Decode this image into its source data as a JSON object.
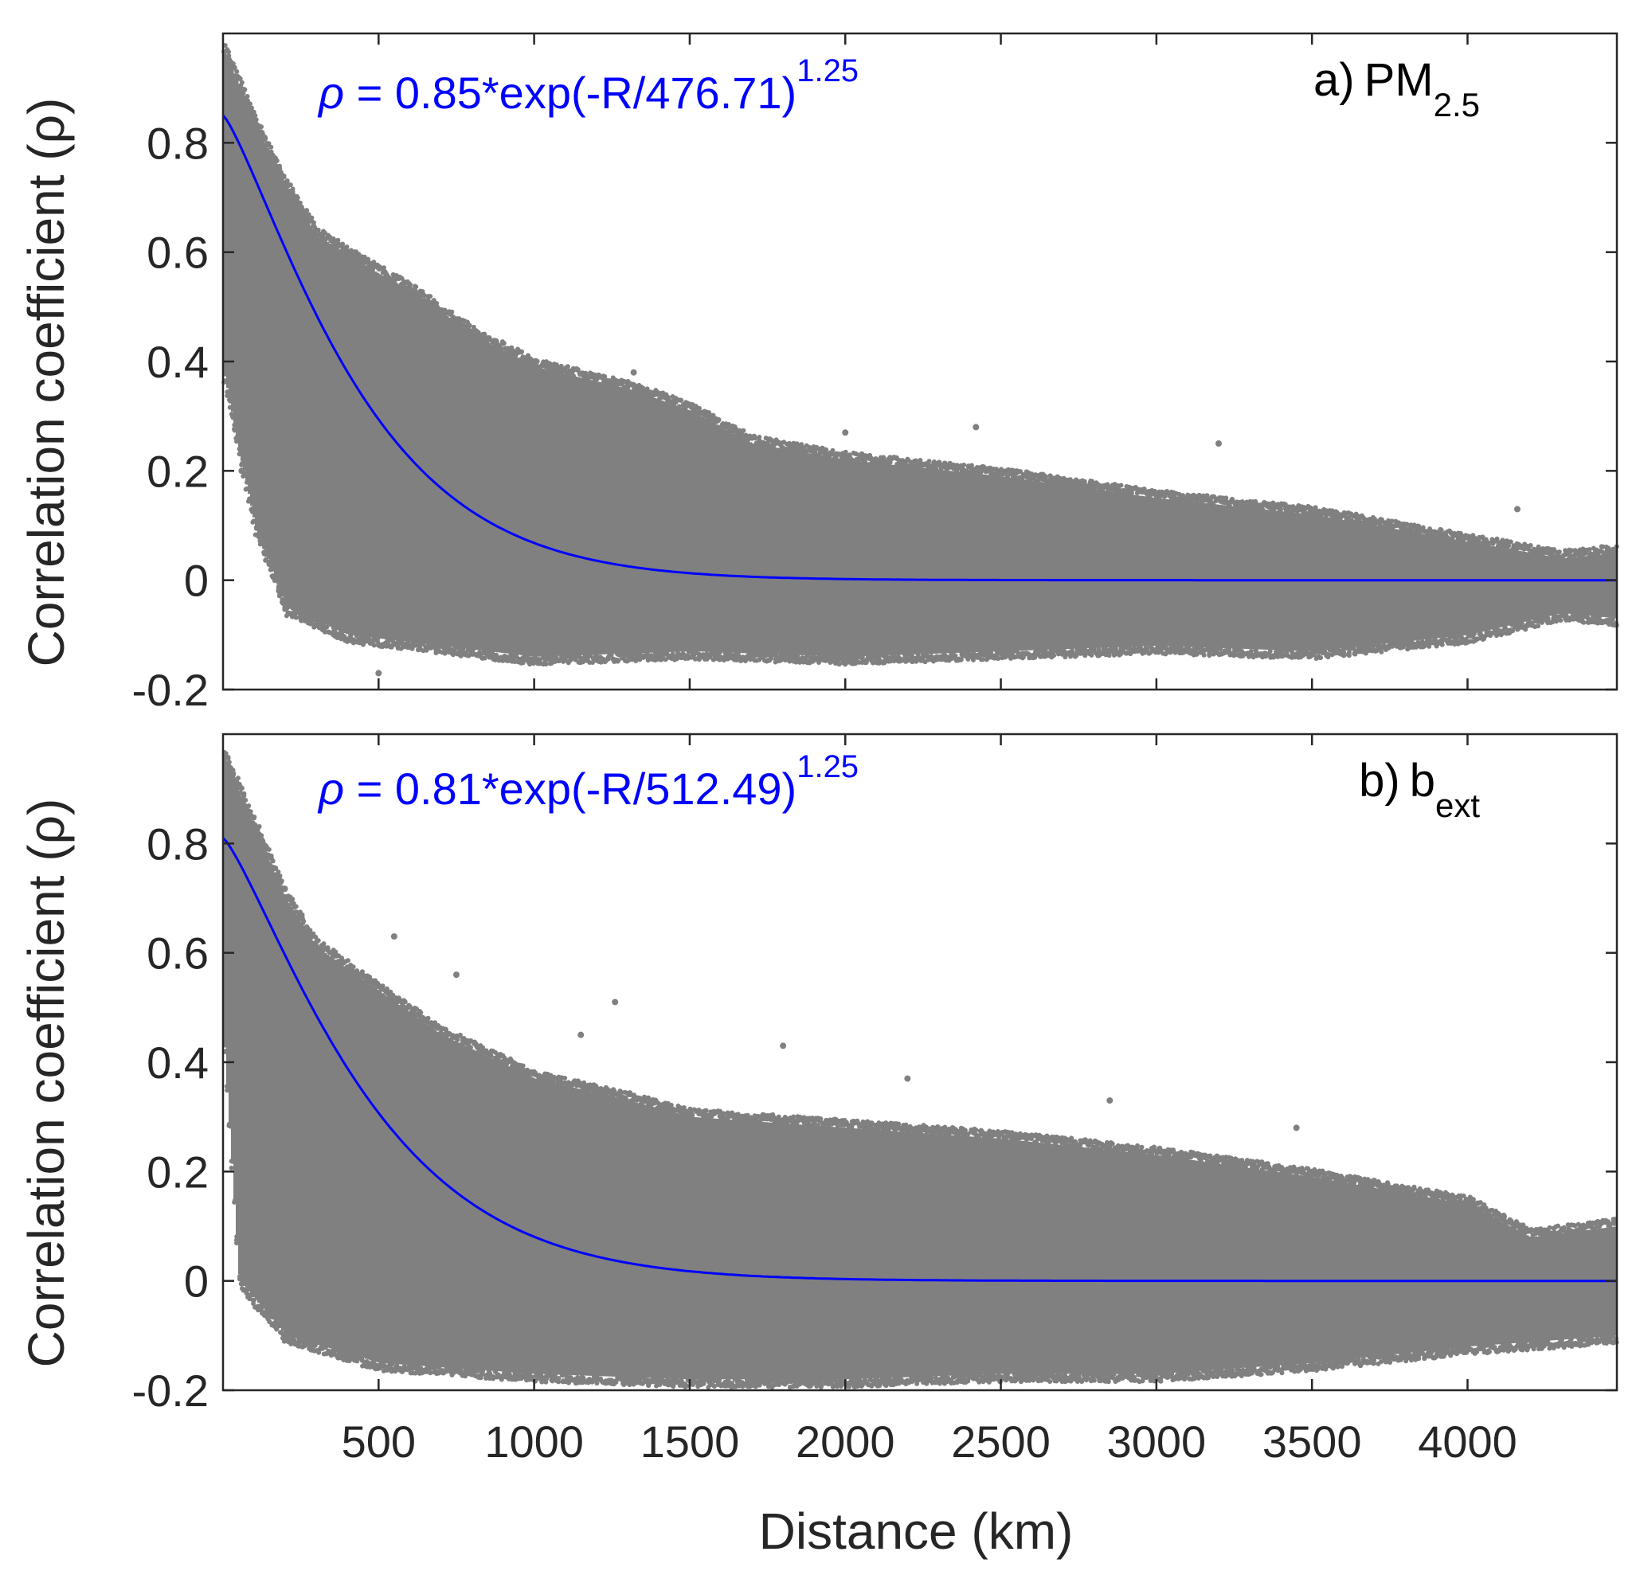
{
  "chart_data": [
    {
      "type": "scatter",
      "panel_label": "a)",
      "panel_var": "PM",
      "panel_var_sub": "2.5",
      "equation": {
        "symbol": "ρ",
        "body": " = 0.85*exp(-R/476.71)",
        "exponent": "1.25",
        "a": 0.85,
        "L": 476.71,
        "p": 1.25
      },
      "ylabel": "Correlation coefficient (ρ)",
      "xlim": [
        0,
        4480
      ],
      "ylim": [
        -0.2,
        1.0
      ],
      "yticks": [
        -0.2,
        0,
        0.2,
        0.4,
        0.6,
        0.8
      ],
      "ytick_labels": [
        "-0.2",
        "0",
        "0.2",
        "0.4",
        "0.6",
        "0.8"
      ],
      "xticks": [
        500,
        1000,
        1500,
        2000,
        2500,
        3000,
        3500,
        4000
      ],
      "show_xtick_labels": false,
      "scatter_color": "#808080",
      "fit_color": "#0000ff",
      "upper_envelope": [
        [
          0,
          0.97
        ],
        [
          100,
          0.84
        ],
        [
          200,
          0.72
        ],
        [
          300,
          0.63
        ],
        [
          500,
          0.56
        ],
        [
          600,
          0.53
        ],
        [
          800,
          0.45
        ],
        [
          1000,
          0.39
        ],
        [
          1300,
          0.35
        ],
        [
          1500,
          0.31
        ],
        [
          1700,
          0.25
        ],
        [
          2000,
          0.22
        ],
        [
          2500,
          0.19
        ],
        [
          3000,
          0.15
        ],
        [
          3500,
          0.12
        ],
        [
          4000,
          0.07
        ],
        [
          4300,
          0.04
        ],
        [
          4480,
          0.05
        ]
      ],
      "lower_envelope": [
        [
          0,
          0.38
        ],
        [
          100,
          0.1
        ],
        [
          200,
          -0.05
        ],
        [
          400,
          -0.1
        ],
        [
          700,
          -0.12
        ],
        [
          1000,
          -0.14
        ],
        [
          1500,
          -0.13
        ],
        [
          2000,
          -0.14
        ],
        [
          2500,
          -0.13
        ],
        [
          3000,
          -0.12
        ],
        [
          3500,
          -0.13
        ],
        [
          4000,
          -0.1
        ],
        [
          4300,
          -0.06
        ],
        [
          4480,
          -0.07
        ]
      ],
      "outliers": [
        [
          1320,
          0.38
        ],
        [
          2000,
          0.27
        ],
        [
          2420,
          0.28
        ],
        [
          3200,
          0.25
        ],
        [
          4160,
          0.13
        ],
        [
          1000,
          0.4
        ],
        [
          60,
          0.2
        ],
        [
          500,
          -0.17
        ]
      ]
    },
    {
      "type": "scatter",
      "panel_label": "b)",
      "panel_var": "b",
      "panel_var_sub": "ext",
      "equation": {
        "symbol": "ρ",
        "body": " = 0.81*exp(-R/512.49)",
        "exponent": "1.25",
        "a": 0.81,
        "L": 512.49,
        "p": 1.25
      },
      "ylabel": "Correlation coefficient (ρ)",
      "xlabel": "Distance (km)",
      "xlim": [
        0,
        4480
      ],
      "ylim": [
        -0.2,
        1.0
      ],
      "yticks": [
        -0.2,
        0,
        0.2,
        0.4,
        0.6,
        0.8
      ],
      "ytick_labels": [
        "-0.2",
        "0",
        "0.2",
        "0.4",
        "0.6",
        "0.8"
      ],
      "xticks": [
        500,
        1000,
        1500,
        2000,
        2500,
        3000,
        3500,
        4000
      ],
      "xtick_labels": [
        "500",
        "1000",
        "1500",
        "2000",
        "2500",
        "3000",
        "3500",
        "4000"
      ],
      "show_xtick_labels": true,
      "scatter_color": "#808080",
      "fit_color": "#0000ff",
      "upper_envelope": [
        [
          0,
          0.96
        ],
        [
          100,
          0.83
        ],
        [
          200,
          0.7
        ],
        [
          300,
          0.61
        ],
        [
          500,
          0.53
        ],
        [
          700,
          0.45
        ],
        [
          1000,
          0.37
        ],
        [
          1300,
          0.33
        ],
        [
          1500,
          0.3
        ],
        [
          2000,
          0.28
        ],
        [
          2500,
          0.26
        ],
        [
          3000,
          0.23
        ],
        [
          3500,
          0.19
        ],
        [
          4000,
          0.14
        ],
        [
          4200,
          0.08
        ],
        [
          4480,
          0.1
        ]
      ],
      "lower_envelope": [
        [
          0,
          0.45
        ],
        [
          50,
          0.0
        ],
        [
          200,
          -0.1
        ],
        [
          500,
          -0.15
        ],
        [
          1000,
          -0.17
        ],
        [
          1500,
          -0.18
        ],
        [
          2000,
          -0.18
        ],
        [
          2500,
          -0.17
        ],
        [
          3000,
          -0.17
        ],
        [
          3500,
          -0.15
        ],
        [
          4000,
          -0.12
        ],
        [
          4480,
          -0.1
        ]
      ],
      "outliers": [
        [
          1260,
          0.51
        ],
        [
          750,
          0.56
        ],
        [
          1800,
          0.43
        ],
        [
          1150,
          0.45
        ],
        [
          2200,
          0.37
        ],
        [
          2850,
          0.33
        ],
        [
          3450,
          0.28
        ],
        [
          550,
          0.63
        ]
      ]
    }
  ],
  "shared_xlabel": "Distance (km)"
}
